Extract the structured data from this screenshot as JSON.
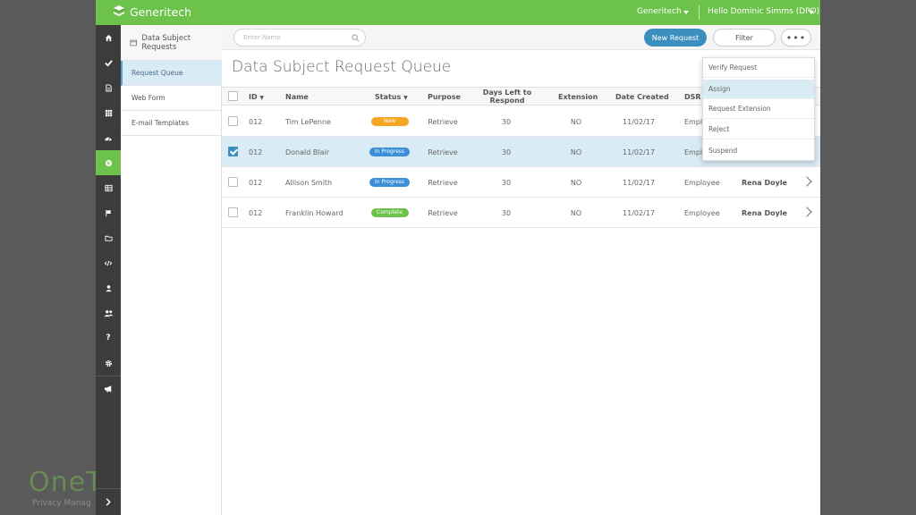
{
  "background": {
    "logo_text": "OneT",
    "logo_sub": "Privacy Manag"
  },
  "topbar": {
    "brand": "Generitech",
    "org": "Generitech",
    "user": "Hello Dominic Simms (DPO)",
    "color": "#6cc24a"
  },
  "rail": {
    "items": [
      "home-icon",
      "check-icon",
      "document-icon",
      "grid-icon",
      "dashboard-icon",
      "globe-icon",
      "table-icon",
      "flag-icon",
      "folder-icon",
      "code-icon",
      "user-icon",
      "users-icon",
      "help-icon",
      "gear-icon",
      "megaphone-icon"
    ],
    "expand_icon": "chevron-right-icon"
  },
  "subnav": {
    "header": "Data Subject Requests",
    "items": [
      "Request Queue",
      "Web Form",
      "E-mail Templates"
    ]
  },
  "toolbar": {
    "search_placeholder": "Enter Name",
    "new_request": "New Request",
    "filter": "Filter",
    "more": "•••"
  },
  "page": {
    "title": "Data Subject Request Queue"
  },
  "table": {
    "headers": {
      "id": "ID",
      "name": "Name",
      "status": "Status",
      "purpose": "Purpose",
      "days_line1": "Days Left to",
      "days_line2": "Respond",
      "extension": "Extension",
      "date_created": "Date Created",
      "dsr_type": "DSR T"
    },
    "rows": [
      {
        "id": "012",
        "name": "Tim LePenne",
        "status": "New",
        "status_color": "#f5a623",
        "purpose": "Retrieve",
        "days": "30",
        "extension": "NO",
        "date": "11/02/17",
        "type": "Employ",
        "assignee": "",
        "selected": false
      },
      {
        "id": "012",
        "name": "Donald Blair",
        "status": "In Progress",
        "status_color": "#3b8fd9",
        "purpose": "Retrieve",
        "days": "30",
        "extension": "NO",
        "date": "11/02/17",
        "type": "Empl",
        "assignee": "",
        "selected": true
      },
      {
        "id": "012",
        "name": "Allison Smith",
        "status": "In Progress",
        "status_color": "#3b8fd9",
        "purpose": "Retrieve",
        "days": "30",
        "extension": "NO",
        "date": "11/02/17",
        "type": "Employee",
        "assignee": "Rena Doyle",
        "selected": false
      },
      {
        "id": "012",
        "name": "Franklin Howard",
        "status": "Complete",
        "status_color": "#6cc24a",
        "purpose": "Retrieve",
        "days": "30",
        "extension": "NO",
        "date": "11/02/17",
        "type": "Employee",
        "assignee": "Rena Doyle",
        "selected": false
      }
    ]
  },
  "dropdown": {
    "items": [
      "Verify Request",
      "Assign",
      "Request Extension",
      "Reject",
      "Suspend"
    ]
  }
}
